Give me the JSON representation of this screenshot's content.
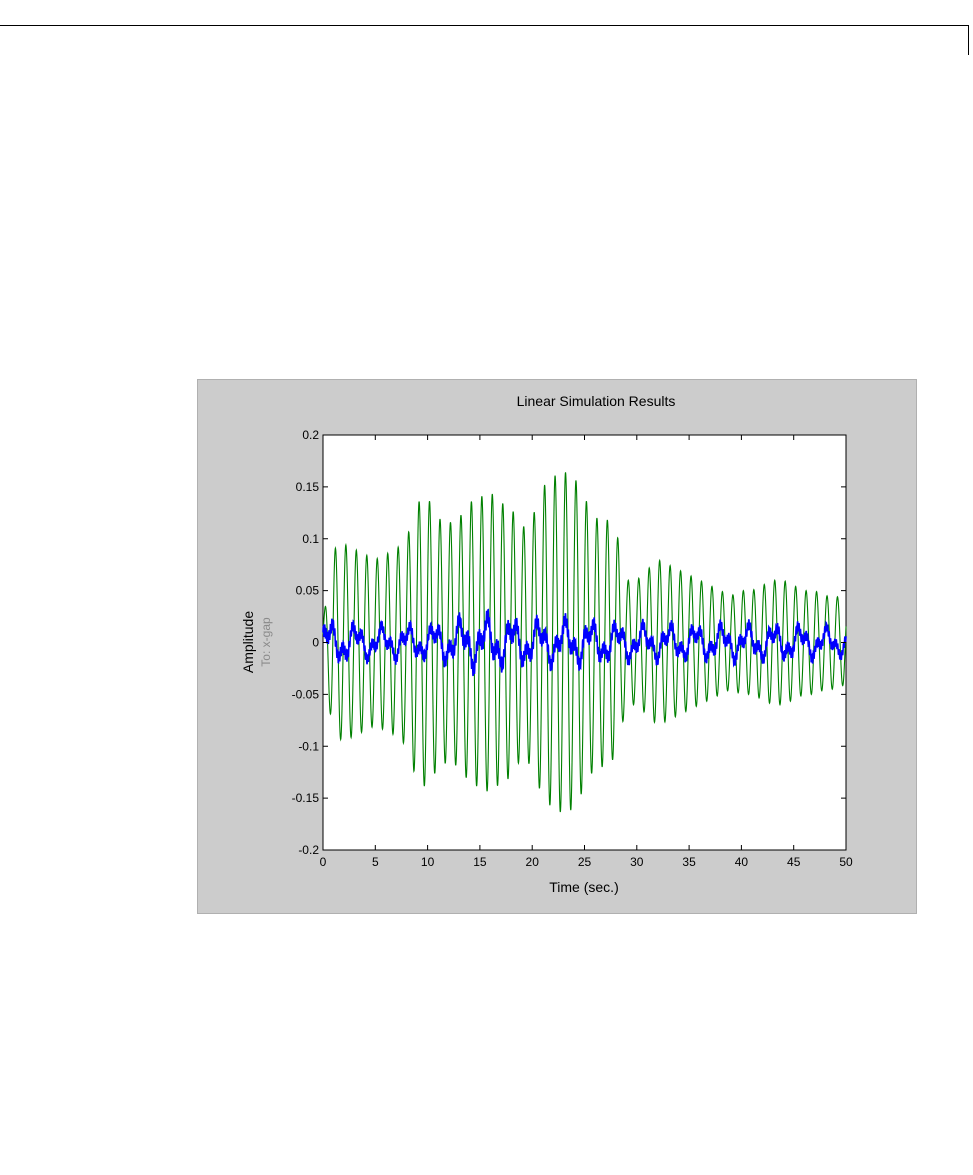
{
  "chart_data": {
    "type": "line",
    "title": "Linear Simulation Results",
    "xlabel": "Time (sec.)",
    "ylabel": "Amplitude",
    "ylabel_secondary": "To: x-gap",
    "xlim": [
      0,
      50
    ],
    "ylim": [
      -0.2,
      0.2
    ],
    "xticks": [
      "0",
      "5",
      "10",
      "15",
      "20",
      "25",
      "30",
      "35",
      "40",
      "45",
      "50"
    ],
    "yticks": [
      "0.2",
      "0.15",
      "0.1",
      "0.05",
      "0",
      "-0.05",
      "-0.1",
      "-0.15",
      "-0.2"
    ],
    "grid": false,
    "legend": "none",
    "series": [
      {
        "color": "#008000",
        "x": [
          0,
          1,
          2,
          3,
          4,
          5,
          6,
          7,
          8,
          9,
          10,
          11,
          12,
          13,
          14,
          15,
          16,
          17,
          18,
          19,
          20,
          21,
          22,
          23,
          24,
          25,
          26,
          27,
          28,
          29,
          30,
          31,
          32,
          33,
          34,
          35,
          36,
          37,
          38,
          39,
          40,
          41,
          42,
          43,
          44,
          45,
          46,
          47,
          48,
          49,
          50
        ],
        "envelope": [
          0.02,
          0.09,
          0.095,
          0.09,
          0.085,
          0.08,
          0.085,
          0.09,
          0.1,
          0.135,
          0.14,
          0.12,
          0.115,
          0.12,
          0.135,
          0.14,
          0.145,
          0.135,
          0.13,
          0.11,
          0.12,
          0.15,
          0.16,
          0.165,
          0.16,
          0.14,
          0.12,
          0.12,
          0.11,
          0.06,
          0.06,
          0.07,
          0.08,
          0.075,
          0.07,
          0.065,
          0.06,
          0.055,
          0.05,
          0.045,
          0.05,
          0.05,
          0.055,
          0.06,
          0.06,
          0.055,
          0.05,
          0.05,
          0.045,
          0.045,
          0.04
        ],
        "period": 1.0
      },
      {
        "color": "#0000ff",
        "x": [
          0,
          5,
          10,
          15,
          20,
          25,
          30,
          35,
          40,
          45,
          50
        ],
        "envelope": [
          0.025,
          0.018,
          0.02,
          0.03,
          0.025,
          0.025,
          0.02,
          0.02,
          0.02,
          0.02,
          0.015
        ],
        "period": 2.5
      }
    ]
  }
}
